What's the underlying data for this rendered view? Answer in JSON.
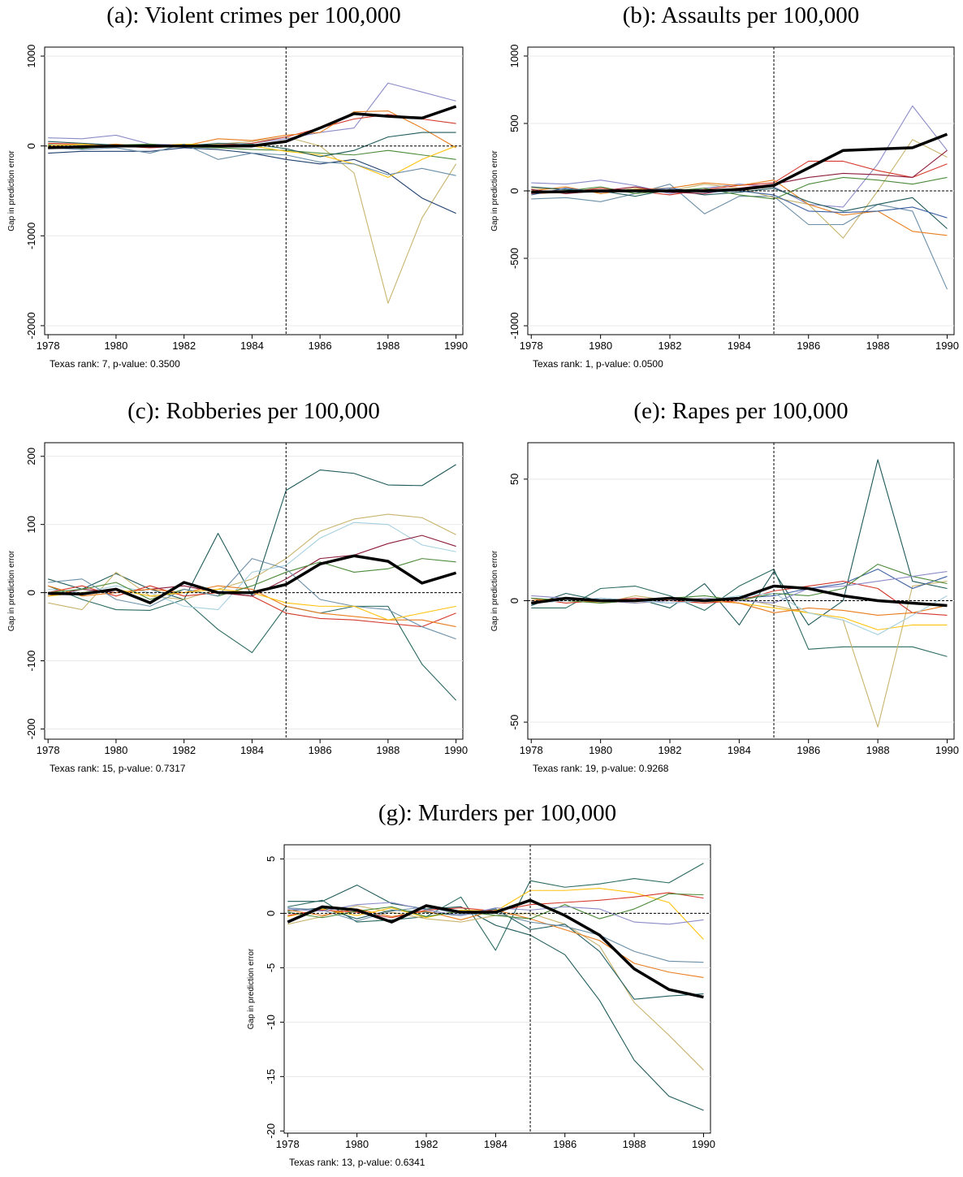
{
  "chart_data": [
    {
      "type": "line",
      "title": "(a): Violent crimes per 100,000",
      "y_label": "Gap in prediction error",
      "note": "Texas rank: 7, p-value: 0.3500",
      "x": [
        1978,
        1979,
        1980,
        1981,
        1982,
        1983,
        1984,
        1985,
        1986,
        1987,
        1988,
        1989,
        1990
      ],
      "xlim": [
        1977.9,
        1990.2
      ],
      "xticks": [
        1978,
        1980,
        1982,
        1984,
        1986,
        1988,
        1990
      ],
      "ylim": [
        -2100,
        1100
      ],
      "yticks": [
        -2000,
        -1000,
        0,
        1000
      ],
      "grid": true,
      "xline": 1985,
      "yline": 0,
      "series": [
        {
          "color": "#8b8bc8",
          "values": [
            90,
            80,
            120,
            20,
            10,
            -20,
            30,
            80,
            150,
            200,
            700,
            600,
            500
          ]
        },
        {
          "color": "#c8b46e",
          "values": [
            20,
            10,
            0,
            10,
            0,
            20,
            50,
            100,
            0,
            -300,
            -1750,
            -800,
            -200
          ]
        },
        {
          "color": "#1f3f6e",
          "values": [
            -80,
            -60,
            -60,
            -60,
            -20,
            -40,
            -80,
            -150,
            -200,
            -150,
            -300,
            -580,
            -750
          ]
        },
        {
          "color": "#d4382c",
          "values": [
            30,
            20,
            0,
            -20,
            0,
            10,
            30,
            100,
            200,
            300,
            350,
            300,
            250
          ]
        },
        {
          "color": "#e87d1e",
          "values": [
            -30,
            0,
            20,
            -10,
            0,
            80,
            60,
            120,
            150,
            380,
            390,
            200,
            -20
          ]
        },
        {
          "color": "#4c8a3a",
          "values": [
            10,
            -30,
            10,
            20,
            -10,
            -20,
            -40,
            -50,
            -80,
            -100,
            -50,
            -100,
            -150
          ]
        },
        {
          "color": "#ffc20e",
          "values": [
            0,
            20,
            -10,
            0,
            20,
            10,
            0,
            -60,
            -100,
            -200,
            -350,
            -150,
            0
          ]
        },
        {
          "color": "#6b8fa8",
          "values": [
            -20,
            -40,
            -20,
            -80,
            20,
            -150,
            -80,
            -100,
            -180,
            -200,
            -320,
            -250,
            -330
          ]
        },
        {
          "color": "#1f5a5a",
          "values": [
            50,
            30,
            10,
            -10,
            0,
            30,
            20,
            -30,
            -120,
            -50,
            100,
            150,
            150
          ]
        },
        {
          "color": "#000000",
          "width": 3.5,
          "values": [
            -20,
            -10,
            0,
            0,
            0,
            0,
            0,
            50,
            200,
            360,
            330,
            310,
            440
          ]
        }
      ]
    },
    {
      "type": "line",
      "title": "(b): Assaults per 100,000",
      "y_label": "Gap in prediction error",
      "note": "Texas rank: 1, p-value: 0.0500",
      "x": [
        1978,
        1979,
        1980,
        1981,
        1982,
        1983,
        1984,
        1985,
        1986,
        1987,
        1988,
        1989,
        1990
      ],
      "xlim": [
        1977.9,
        1990.2
      ],
      "xticks": [
        1978,
        1980,
        1982,
        1984,
        1986,
        1988,
        1990
      ],
      "ylim": [
        -1066,
        1066
      ],
      "yticks": [
        -1000,
        -500,
        0,
        500,
        1000
      ],
      "grid": true,
      "xline": 1985,
      "yline": 0,
      "series": [
        {
          "color": "#8b8bc8",
          "values": [
            60,
            50,
            80,
            40,
            -20,
            20,
            50,
            30,
            -100,
            -120,
            200,
            630,
            300
          ]
        },
        {
          "color": "#6b8fa8",
          "values": [
            -60,
            -50,
            -80,
            -20,
            50,
            -170,
            -40,
            -40,
            -250,
            -250,
            -100,
            -150,
            -730
          ]
        },
        {
          "color": "#c8b46e",
          "values": [
            20,
            10,
            -10,
            20,
            0,
            50,
            20,
            -50,
            -100,
            -350,
            0,
            380,
            250
          ]
        },
        {
          "color": "#d4382c",
          "values": [
            -20,
            -10,
            20,
            0,
            -30,
            10,
            40,
            60,
            220,
            220,
            150,
            100,
            200
          ]
        },
        {
          "color": "#e87d1e",
          "values": [
            0,
            30,
            -20,
            10,
            20,
            60,
            40,
            80,
            -100,
            -180,
            -150,
            -300,
            -330
          ]
        },
        {
          "color": "#1f5a5a",
          "values": [
            30,
            10,
            0,
            -40,
            10,
            -30,
            -10,
            20,
            -80,
            -150,
            -100,
            -50,
            -280
          ]
        },
        {
          "color": "#4c8a3a",
          "values": [
            -10,
            0,
            30,
            -20,
            0,
            20,
            -30,
            -60,
            50,
            100,
            80,
            50,
            100
          ]
        },
        {
          "color": "#8c1c3a",
          "values": [
            10,
            -20,
            0,
            30,
            -10,
            -20,
            20,
            50,
            100,
            130,
            120,
            100,
            300
          ]
        },
        {
          "color": "#3a5fa0",
          "values": [
            -30,
            20,
            -10,
            0,
            20,
            -10,
            0,
            -30,
            -150,
            -160,
            -150,
            -120,
            -200
          ]
        },
        {
          "color": "#000000",
          "width": 3.5,
          "values": [
            -10,
            -5,
            0,
            0,
            0,
            0,
            10,
            40,
            170,
            300,
            310,
            320,
            420
          ]
        }
      ]
    },
    {
      "type": "line",
      "title": "(c): Robberies per 100,000",
      "y_label": "Gap in prediction error",
      "note": "Texas rank: 15, p-value: 0.7317",
      "x": [
        1978,
        1979,
        1980,
        1981,
        1982,
        1983,
        1984,
        1985,
        1986,
        1987,
        1988,
        1989,
        1990
      ],
      "xlim": [
        1977.9,
        1990.2
      ],
      "xticks": [
        1978,
        1980,
        1982,
        1984,
        1986,
        1988,
        1990
      ],
      "ylim": [
        -215,
        220
      ],
      "yticks": [
        -200,
        -100,
        0,
        100,
        200
      ],
      "grid": true,
      "xline": 1985,
      "yline": 0,
      "series": [
        {
          "color": "#1f5a5a",
          "values": [
            20,
            5,
            28,
            5,
            -10,
            87,
            -5,
            150,
            180,
            175,
            158,
            157,
            188
          ]
        },
        {
          "color": "#2a6a60",
          "values": [
            10,
            -10,
            -25,
            -26,
            -10,
            -54,
            -88,
            -20,
            -30,
            -20,
            -20,
            -105,
            -158
          ]
        },
        {
          "color": "#c8b46e",
          "values": [
            -15,
            -25,
            30,
            -5,
            -10,
            5,
            20,
            50,
            90,
            108,
            115,
            110,
            85
          ]
        },
        {
          "color": "#a6d0e0",
          "values": [
            5,
            0,
            10,
            0,
            -20,
            -25,
            30,
            40,
            80,
            103,
            100,
            70,
            60
          ]
        },
        {
          "color": "#d4382c",
          "values": [
            0,
            10,
            -5,
            10,
            -5,
            0,
            -5,
            -30,
            -38,
            -40,
            -45,
            -50,
            -30
          ]
        },
        {
          "color": "#8c1c3a",
          "values": [
            -5,
            5,
            0,
            5,
            10,
            0,
            -5,
            20,
            50,
            55,
            72,
            84,
            68
          ]
        },
        {
          "color": "#e87d1e",
          "values": [
            10,
            -5,
            0,
            5,
            0,
            10,
            5,
            -20,
            -30,
            -35,
            -40,
            -40,
            -50
          ]
        },
        {
          "color": "#4c8a3a",
          "values": [
            0,
            5,
            15,
            -10,
            5,
            -5,
            10,
            30,
            45,
            30,
            35,
            50,
            45
          ]
        },
        {
          "color": "#6b8fa8",
          "values": [
            15,
            20,
            -10,
            -20,
            5,
            -5,
            50,
            35,
            -10,
            -20,
            -25,
            -50,
            -68
          ]
        },
        {
          "color": "#ffc20e",
          "values": [
            -5,
            0,
            5,
            -5,
            0,
            5,
            0,
            -15,
            -20,
            -20,
            -40,
            -30,
            -20
          ]
        },
        {
          "color": "#000000",
          "width": 3.5,
          "values": [
            -1,
            -2,
            5,
            -15,
            15,
            0,
            0,
            12,
            42,
            54,
            46,
            14,
            29
          ]
        }
      ]
    },
    {
      "type": "line",
      "title": "(e): Rapes per 100,000",
      "y_label": "Gap in prediction error",
      "note": "Texas rank: 19, p-value: 0.9268",
      "x": [
        1978,
        1979,
        1980,
        1981,
        1982,
        1983,
        1984,
        1985,
        1986,
        1987,
        1988,
        1989,
        1990
      ],
      "xlim": [
        1977.9,
        1990.2
      ],
      "xticks": [
        1978,
        1980,
        1982,
        1984,
        1986,
        1988,
        1990
      ],
      "ylim": [
        -57,
        65
      ],
      "yticks": [
        -50,
        0,
        50
      ],
      "grid": true,
      "xline": 1985,
      "yline": 0,
      "series": [
        {
          "color": "#1f5a5a",
          "values": [
            -2,
            3,
            0,
            1,
            -3,
            7,
            -10,
            12,
            -10,
            0,
            58,
            8,
            5
          ]
        },
        {
          "color": "#2a6a60",
          "values": [
            -3,
            -3,
            5,
            6,
            2,
            -4,
            6,
            13,
            -20,
            -19,
            -19,
            -19,
            -23
          ]
        },
        {
          "color": "#c8b46e",
          "values": [
            1,
            0,
            -1,
            2,
            0,
            -1,
            1,
            -2,
            -5,
            -8,
            -52,
            6,
            8
          ]
        },
        {
          "color": "#ffc20e",
          "values": [
            0,
            1,
            0,
            -1,
            0,
            1,
            -1,
            -3,
            -5,
            -7,
            -12,
            -10,
            -10
          ]
        },
        {
          "color": "#3a5fa0",
          "values": [
            -1,
            0,
            1,
            0,
            -1,
            0,
            1,
            2,
            5,
            7,
            13,
            5,
            10
          ]
        },
        {
          "color": "#d4382c",
          "values": [
            1,
            -1,
            0,
            1,
            0,
            -1,
            0,
            4,
            6,
            8,
            5,
            -5,
            -6
          ]
        },
        {
          "color": "#e87d1e",
          "values": [
            0,
            1,
            -1,
            0,
            1,
            0,
            -1,
            -5,
            -3,
            -4,
            -6,
            -5,
            -2
          ]
        },
        {
          "color": "#4c8a3a",
          "values": [
            1,
            0,
            -1,
            0,
            1,
            2,
            0,
            3,
            2,
            5,
            15,
            10,
            7
          ]
        },
        {
          "color": "#8b8bc8",
          "values": [
            2,
            1,
            0,
            -1,
            0,
            1,
            0,
            -1,
            5,
            6,
            8,
            10,
            12
          ]
        },
        {
          "color": "#a6d0e0",
          "values": [
            -1,
            0,
            1,
            0,
            -1,
            0,
            2,
            3,
            -5,
            -8,
            -14,
            -6,
            2
          ]
        },
        {
          "color": "#000000",
          "width": 3.5,
          "values": [
            -1,
            1,
            0,
            0,
            1,
            0,
            1,
            6,
            5,
            2,
            0,
            -1,
            -2
          ]
        }
      ]
    },
    {
      "type": "line",
      "title": "(g): Murders per 100,000",
      "y_label": "Gap in prediction error",
      "note": "Texas rank: 13, p-value: 0.6341",
      "x": [
        1978,
        1979,
        1980,
        1981,
        1982,
        1983,
        1984,
        1985,
        1986,
        1987,
        1988,
        1989,
        1990
      ],
      "xlim": [
        1977.9,
        1990.2
      ],
      "xticks": [
        1978,
        1980,
        1982,
        1984,
        1986,
        1988,
        1990
      ],
      "ylim": [
        -20.2,
        6.3
      ],
      "yticks": [
        -20,
        -15,
        -10,
        -5,
        0,
        5
      ],
      "grid": true,
      "xline": 1985,
      "yline": 0,
      "series": [
        {
          "color": "#1f5a5a",
          "values": [
            1.1,
            1.1,
            2.6,
            0.9,
            0.4,
            0.6,
            -1.1,
            -2.0,
            -3.8,
            -8,
            -13.5,
            -16.8,
            -18.1
          ]
        },
        {
          "color": "#2a6a60",
          "values": [
            0.6,
            1.2,
            -0.8,
            -0.6,
            -0.3,
            1.5,
            -3.4,
            3.0,
            2.4,
            2.7,
            3.2,
            2.8,
            4.6
          ]
        },
        {
          "color": "#c8b46e",
          "values": [
            -1.0,
            -0.3,
            0.7,
            0.1,
            -0.5,
            -0.8,
            -0.2,
            0.0,
            -1.0,
            -3.0,
            -8.2,
            -11.2,
            -14.4
          ]
        },
        {
          "color": "#235f63",
          "values": [
            0.2,
            0.5,
            -0.5,
            0.3,
            0.1,
            -0.2,
            0.4,
            -1.5,
            -1.0,
            -3.5,
            -7.9,
            -7.6,
            -7.4
          ]
        },
        {
          "color": "#e87d1e",
          "values": [
            0.3,
            -0.2,
            0.4,
            -0.3,
            0.2,
            -0.6,
            0.3,
            -0.5,
            -1.5,
            -2.5,
            -4.6,
            -5.4,
            -5.9
          ]
        },
        {
          "color": "#ffc20e",
          "values": [
            -0.3,
            0.4,
            -0.2,
            0.5,
            -0.4,
            0.3,
            0.2,
            2.1,
            2.1,
            2.3,
            1.9,
            1.0,
            -2.4
          ]
        },
        {
          "color": "#6b8fa8",
          "values": [
            0.5,
            0.3,
            -0.7,
            0.2,
            0.6,
            -0.1,
            0.0,
            -0.8,
            -1.2,
            -2.0,
            -3.5,
            -4.4,
            -4.5
          ]
        },
        {
          "color": "#d4382c",
          "values": [
            -0.2,
            0.3,
            0.1,
            -0.4,
            0.3,
            0.5,
            0.2,
            0.8,
            1.0,
            1.2,
            1.5,
            1.9,
            1.4
          ]
        },
        {
          "color": "#4c8a3a",
          "values": [
            0.1,
            -0.4,
            0.2,
            0.6,
            -0.3,
            0.2,
            -0.2,
            -0.5,
            0.8,
            -0.5,
            0.4,
            1.8,
            1.7
          ]
        },
        {
          "color": "#8b8bc8",
          "values": [
            0.4,
            0.2,
            0.8,
            1.0,
            0.3,
            -0.2,
            0.5,
            0.3,
            0.6,
            0.4,
            -0.8,
            -1.0,
            -0.6
          ]
        },
        {
          "color": "#000000",
          "width": 3.5,
          "values": [
            -0.8,
            0.6,
            0.3,
            -0.8,
            0.7,
            0.1,
            0.1,
            1.2,
            -0.2,
            -2,
            -5.1,
            -7,
            -7.7
          ]
        }
      ]
    }
  ]
}
